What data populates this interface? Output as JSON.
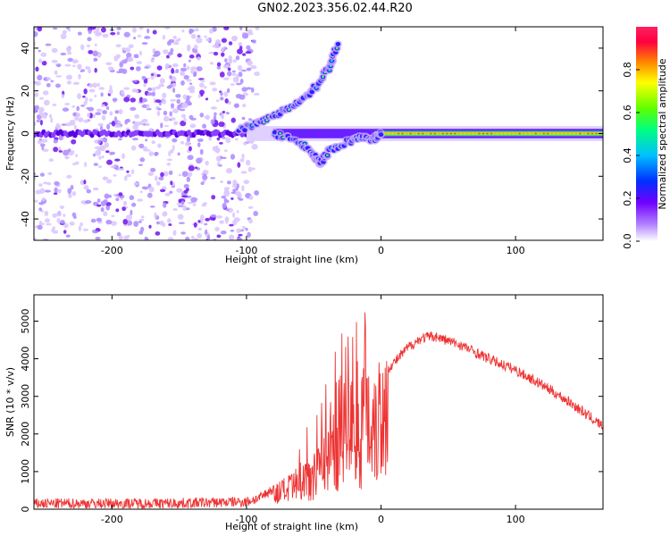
{
  "title": "GN02.2023.356.02.44.R20",
  "chart_data": [
    {
      "type": "heatmap",
      "xlabel": "Height of straight line (km)",
      "ylabel": "Frequency (Hz)",
      "xlim": [
        -258,
        165
      ],
      "ylim": [
        -50,
        50
      ],
      "xticks": [
        -200,
        -100,
        0,
        100
      ],
      "yticks": [
        -40,
        -20,
        0,
        20,
        40
      ],
      "tick_labels_x": [
        "-200",
        "-100",
        "0",
        "100"
      ],
      "tick_labels_y": [
        "-40",
        "-20",
        "0",
        "20",
        "40"
      ],
      "colorbar": {
        "label": "Normalized spectral amplitude",
        "range": [
          0,
          1
        ],
        "ticks": [
          "0.0",
          "0.2",
          "0.4",
          "0.6",
          "0.8"
        ],
        "colors": [
          "#ffffff",
          "#b080ff",
          "#7000ff",
          "#0030ff",
          "#00c0ff",
          "#00ff80",
          "#60ff00",
          "#ffff00",
          "#ff8000",
          "#ff0040",
          "#ff2060"
        ]
      },
      "features": {
        "noise_region_x": [
          -258,
          -100
        ],
        "carrier_freq": 0,
        "carrier_start_x": -100,
        "upper_branch": [
          [
            -105,
            2
          ],
          [
            -90,
            5
          ],
          [
            -75,
            10
          ],
          [
            -60,
            15
          ],
          [
            -48,
            22
          ],
          [
            -38,
            32
          ],
          [
            -32,
            42
          ]
        ],
        "lower_branch": [
          [
            -80,
            0
          ],
          [
            -60,
            -4
          ],
          [
            -50,
            -10
          ],
          [
            -45,
            -14
          ],
          [
            -38,
            -8
          ],
          [
            -25,
            -4
          ],
          [
            -15,
            -2
          ],
          [
            -5,
            -3
          ],
          [
            0,
            0
          ]
        ]
      }
    },
    {
      "type": "line",
      "xlabel": "Height of straight line (km)",
      "ylabel": "SNR (10 * v/v)",
      "xlim": [
        -258,
        165
      ],
      "ylim": [
        0,
        5700
      ],
      "xticks": [
        -200,
        -100,
        0,
        100
      ],
      "yticks": [
        0,
        1000,
        2000,
        3000,
        4000,
        5000
      ],
      "tick_labels_x": [
        "-200",
        "-100",
        "0",
        "100"
      ],
      "tick_labels_y": [
        "0",
        "1000",
        "2000",
        "3000",
        "4000",
        "5000"
      ],
      "series": [
        {
          "color": "#ee3333",
          "envelope": [
            [
              -258,
              150
            ],
            [
              -150,
              160
            ],
            [
              -100,
              200
            ],
            [
              -90,
              300
            ],
            [
              -80,
              550
            ],
            [
              -65,
              800
            ],
            [
              -55,
              1200
            ],
            [
              -45,
              1800
            ],
            [
              -40,
              2200
            ],
            [
              -30,
              3000
            ],
            [
              -20,
              3200
            ],
            [
              -10,
              3500
            ],
            [
              0,
              3600
            ],
            [
              10,
              3900
            ],
            [
              20,
              4300
            ],
            [
              30,
              4550
            ],
            [
              40,
              4600
            ],
            [
              60,
              4350
            ],
            [
              80,
              4000
            ],
            [
              100,
              3700
            ],
            [
              120,
              3300
            ],
            [
              140,
              2850
            ],
            [
              165,
              2200
            ]
          ],
          "noise_amplitude": 140
        }
      ]
    }
  ]
}
